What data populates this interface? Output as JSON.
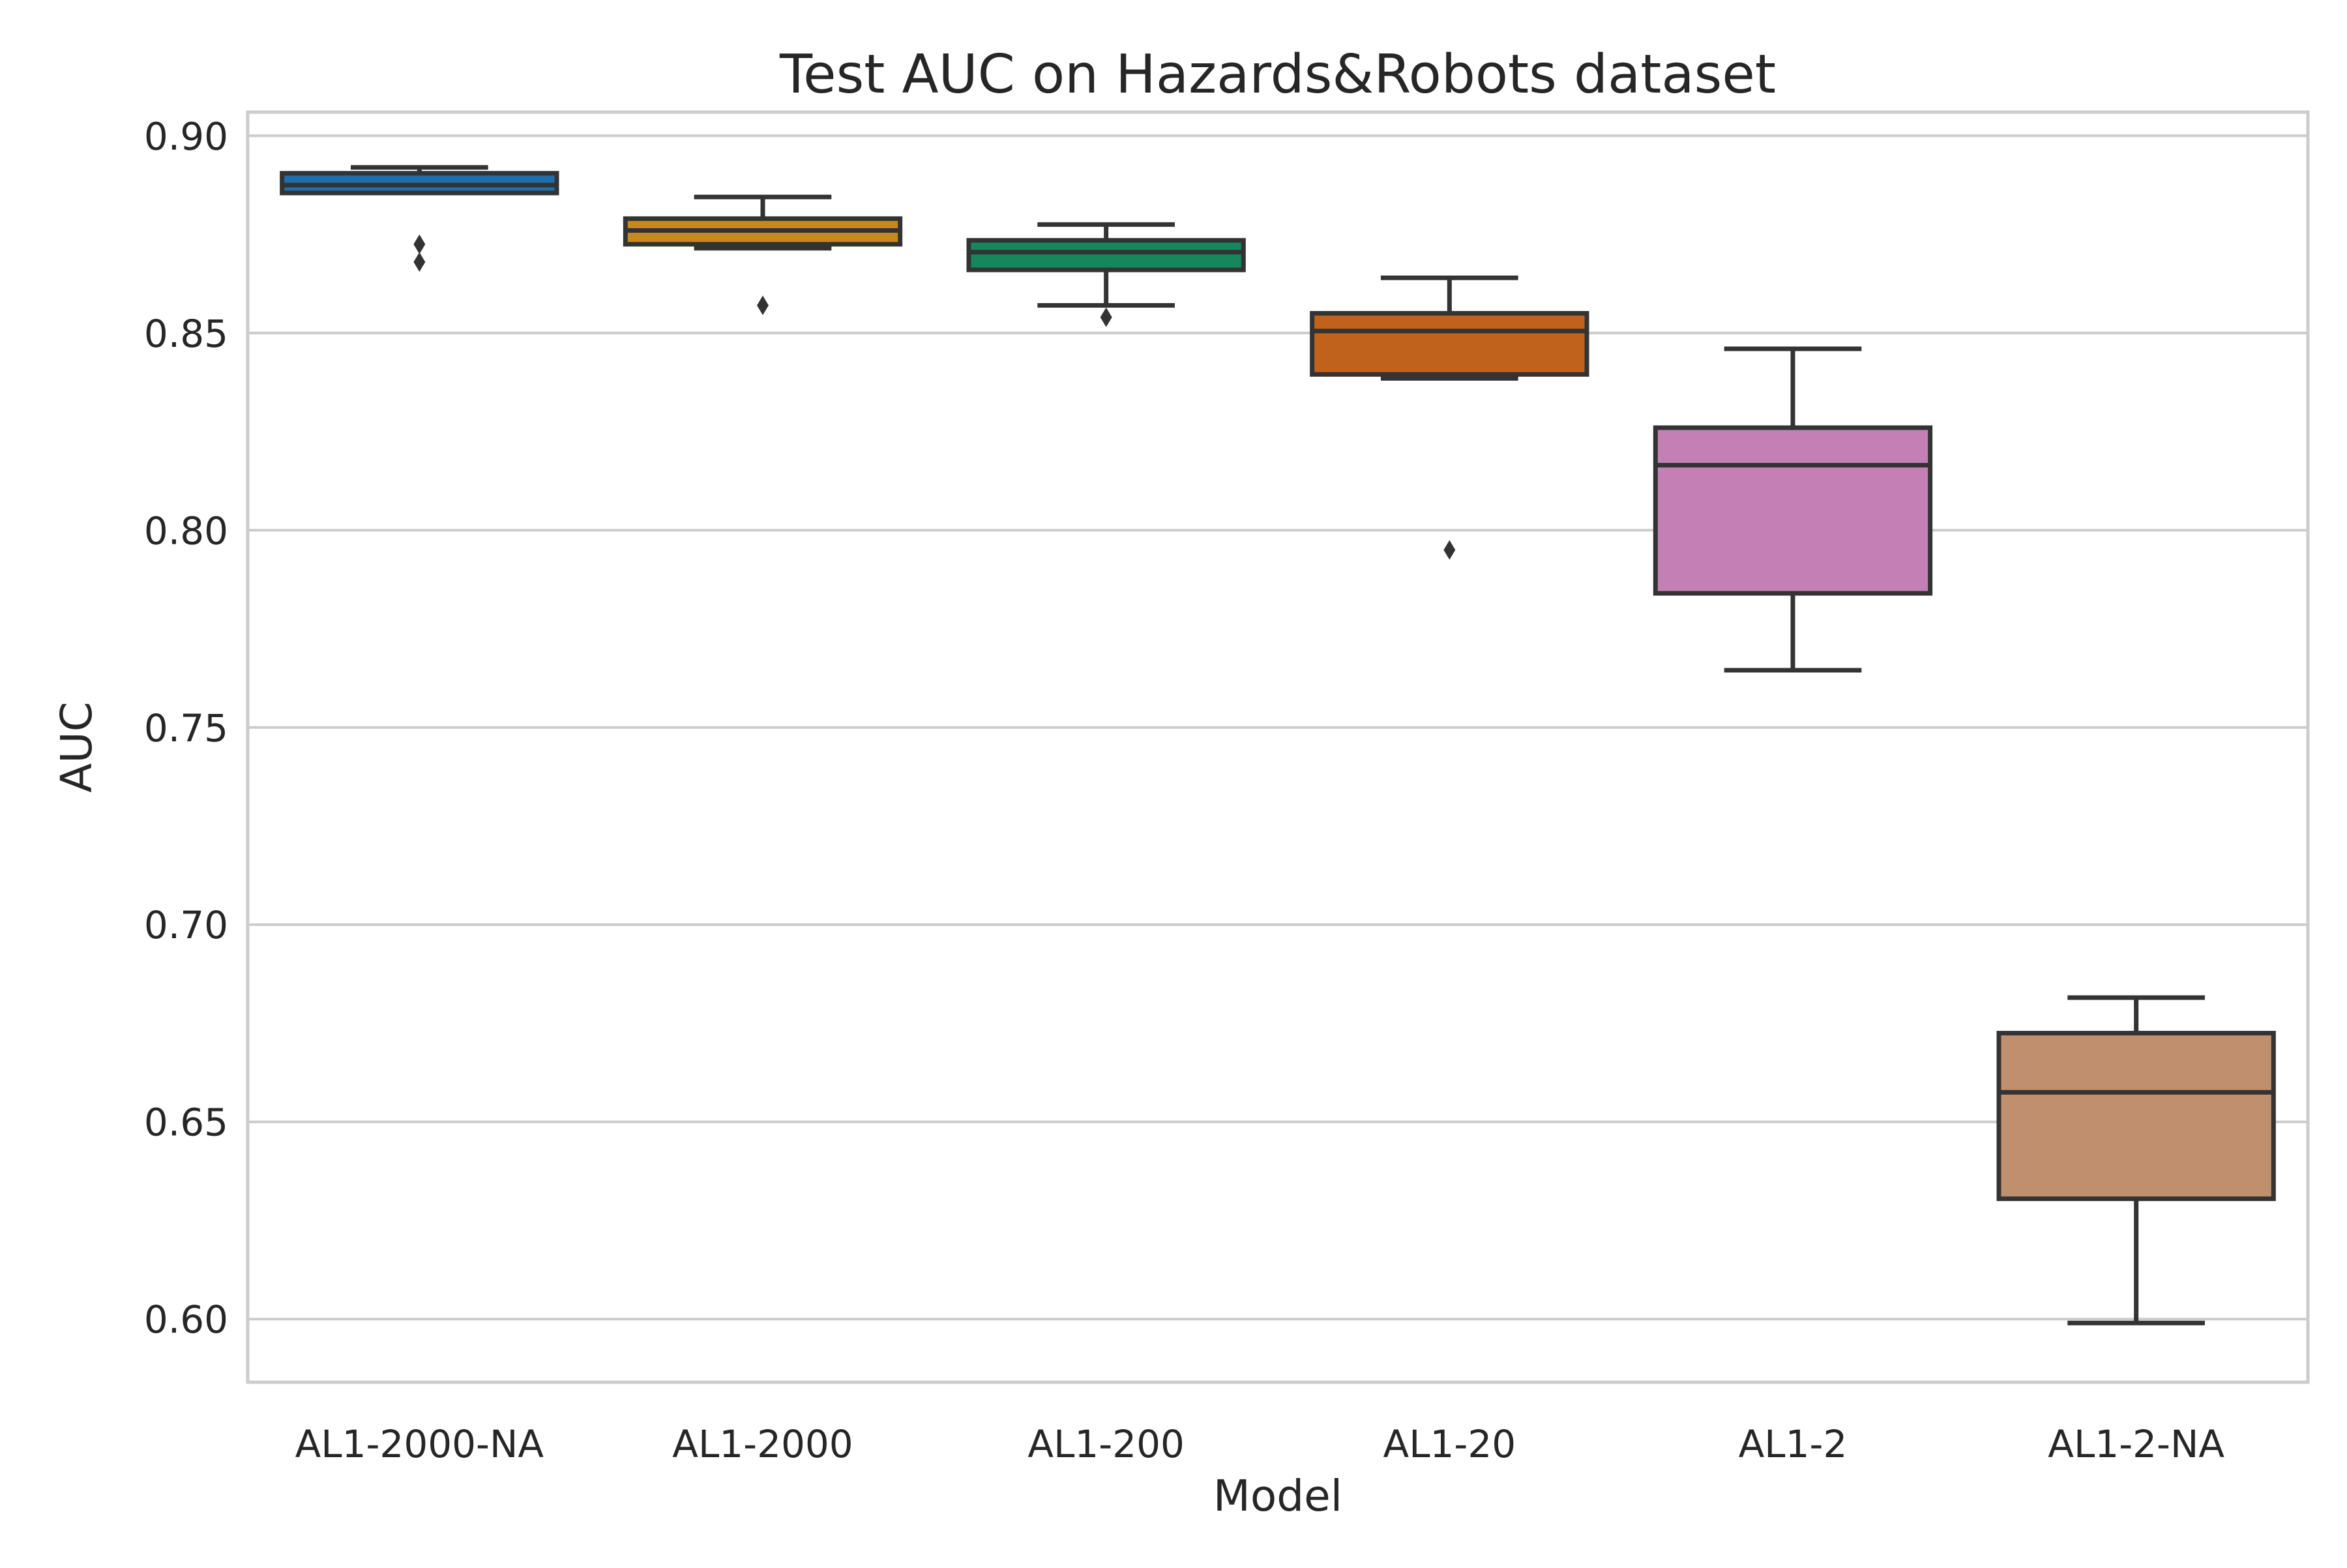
{
  "chart_data": {
    "type": "box",
    "title": "Test AUC on Hazards&Robots dataset",
    "xlabel": "Model",
    "ylabel": "AUC",
    "ylim": [
      0.584,
      0.906
    ],
    "yticks": [
      0.6,
      0.65,
      0.7,
      0.75,
      0.8,
      0.85,
      0.9
    ],
    "ytick_labels": [
      "0.60",
      "0.65",
      "0.70",
      "0.75",
      "0.80",
      "0.85",
      "0.90"
    ],
    "grid": "horizontal",
    "categories": [
      "AL1-2000-NA",
      "AL1-2000",
      "AL1-200",
      "AL1-20",
      "AL1-2",
      "AL1-2-NA"
    ],
    "boxes": [
      {
        "category": "AL1-2000-NA",
        "color": "#1f6fad",
        "whisker_low": 0.8855,
        "q1": 0.8855,
        "median": 0.8875,
        "q3": 0.8905,
        "whisker_high": 0.892,
        "outliers": [
          0.8725,
          0.868
        ]
      },
      {
        "category": "AL1-2000",
        "color": "#c6891e",
        "whisker_low": 0.8715,
        "q1": 0.8725,
        "median": 0.876,
        "q3": 0.879,
        "whisker_high": 0.8845,
        "outliers": [
          0.857
        ]
      },
      {
        "category": "AL1-200",
        "color": "#15875d",
        "whisker_low": 0.857,
        "q1": 0.866,
        "median": 0.8705,
        "q3": 0.8735,
        "whisker_high": 0.8775,
        "outliers": [
          0.854
        ]
      },
      {
        "category": "AL1-20",
        "color": "#c0621c",
        "whisker_low": 0.8385,
        "q1": 0.8395,
        "median": 0.8505,
        "q3": 0.855,
        "whisker_high": 0.864,
        "outliers": [
          0.795
        ]
      },
      {
        "category": "AL1-2",
        "color": "#c480b5",
        "whisker_low": 0.7645,
        "q1": 0.784,
        "median": 0.8165,
        "q3": 0.826,
        "whisker_high": 0.846,
        "outliers": []
      },
      {
        "category": "AL1-2-NA",
        "color": "#bf8f6e",
        "whisker_low": 0.599,
        "q1": 0.6305,
        "median": 0.6575,
        "q3": 0.6725,
        "whisker_high": 0.6815,
        "outliers": []
      }
    ]
  }
}
